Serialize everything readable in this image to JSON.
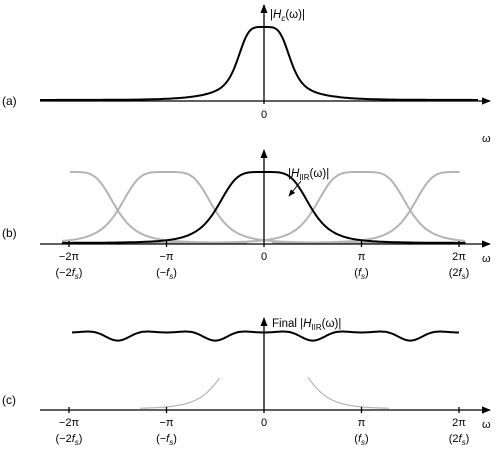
{
  "colors": {
    "primary_curve": "#000000",
    "replica_curve": "#b4b4b4",
    "axis": "#000000",
    "background": "#ffffff"
  },
  "panels": [
    {
      "id": "a",
      "label": "(a)",
      "curve_label": {
        "H": "H",
        "sub": "c",
        "arg": "(ω)"
      },
      "axis_symbol": "ω",
      "ticks": [
        {
          "x": 0,
          "label": "0",
          "sub_label": ""
        }
      ]
    },
    {
      "id": "b",
      "label": "(b)",
      "curve_label": {
        "H": "H",
        "sub": "IIR",
        "arg": "(ω)"
      },
      "axis_symbol": "ω",
      "ticks": [
        {
          "x": -2,
          "label": "−2π",
          "sub_label": "(−2f",
          "sub_s": "s",
          "sub_close": ")"
        },
        {
          "x": -1,
          "label": "−π",
          "sub_label": "(−f",
          "sub_s": "s",
          "sub_close": ")"
        },
        {
          "x": 0,
          "label": "0",
          "sub_label": "",
          "sub_s": "",
          "sub_close": ""
        },
        {
          "x": 1,
          "label": "π",
          "sub_label": "(f",
          "sub_s": "s",
          "sub_close": ")"
        },
        {
          "x": 2,
          "label": "2π",
          "sub_label": "(2f",
          "sub_s": "s",
          "sub_close": ")"
        }
      ]
    },
    {
      "id": "c",
      "label": "(c)",
      "curve_label": {
        "prefix": "Final ",
        "H": "H",
        "sub": "IIR",
        "arg": "(ω)"
      },
      "axis_symbol": "ω",
      "ticks": [
        {
          "x": -2,
          "label": "−2π",
          "sub_label": "(−2f",
          "sub_s": "s",
          "sub_close": ")"
        },
        {
          "x": -1,
          "label": "−π",
          "sub_label": "(−f",
          "sub_s": "s",
          "sub_close": ")"
        },
        {
          "x": 0,
          "label": "0",
          "sub_label": "",
          "sub_s": "",
          "sub_close": ""
        },
        {
          "x": 1,
          "label": "π",
          "sub_label": "(f",
          "sub_s": "s",
          "sub_close": ")"
        },
        {
          "x": 2,
          "label": "2π",
          "sub_label": "(2f",
          "sub_s": "s",
          "sub_close": ")"
        }
      ]
    }
  ]
}
